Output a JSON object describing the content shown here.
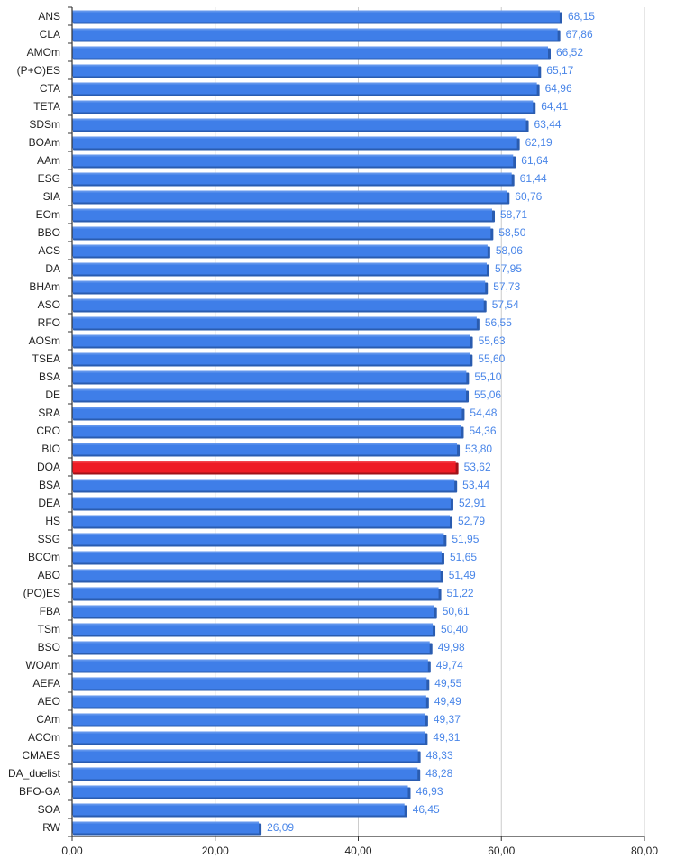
{
  "chart_data": {
    "type": "bar",
    "orientation": "horizontal",
    "categories": [
      "ANS",
      "CLA",
      "AMOm",
      "(P+O)ES",
      "CTA",
      "TETA",
      "SDSm",
      "BOAm",
      "AAm",
      "ESG",
      "SIA",
      "EOm",
      "BBO",
      "ACS",
      "DA",
      "BHAm",
      "ASO",
      "RFO",
      "AOSm",
      "TSEA",
      "BSA",
      "DE",
      "SRA",
      "CRO",
      "BIO",
      "DOA",
      "BSA",
      "DEA",
      "HS",
      "SSG",
      "BCOm",
      "ABO",
      "(PO)ES",
      "FBA",
      "TSm",
      "BSO",
      "WOAm",
      "AEFA",
      "AEO",
      "CAm",
      "ACOm",
      "CMAES",
      "DA_duelist",
      "BFO-GA",
      "SOA",
      "RW"
    ],
    "values": [
      68.15,
      67.86,
      66.52,
      65.17,
      64.96,
      64.41,
      63.44,
      62.19,
      61.64,
      61.44,
      60.76,
      58.71,
      58.5,
      58.06,
      57.95,
      57.73,
      57.54,
      56.55,
      55.63,
      55.6,
      55.1,
      55.06,
      54.48,
      54.36,
      53.8,
      53.62,
      53.44,
      52.91,
      52.79,
      51.95,
      51.65,
      51.49,
      51.22,
      50.61,
      50.4,
      49.98,
      49.74,
      49.55,
      49.49,
      49.37,
      49.31,
      48.33,
      48.28,
      46.93,
      46.45,
      26.09
    ],
    "value_labels": [
      "68,15",
      "67,86",
      "66,52",
      "65,17",
      "64,96",
      "64,41",
      "63,44",
      "62,19",
      "61,64",
      "61,44",
      "60,76",
      "58,71",
      "58,50",
      "58,06",
      "57,95",
      "57,73",
      "57,54",
      "56,55",
      "55,63",
      "55,60",
      "55,10",
      "55,06",
      "54,48",
      "54,36",
      "53,80",
      "53,62",
      "53,44",
      "52,91",
      "52,79",
      "51,95",
      "51,65",
      "51,49",
      "51,22",
      "50,61",
      "50,40",
      "49,98",
      "49,74",
      "49,55",
      "49,49",
      "49,37",
      "49,31",
      "48,33",
      "48,28",
      "46,93",
      "46,45",
      "26,09"
    ],
    "highlight_index": 25,
    "xlim": [
      0,
      80
    ],
    "xticks": [
      0,
      20,
      40,
      60,
      80
    ],
    "xtick_labels": [
      "0,00",
      "20,00",
      "40,00",
      "60,00",
      "80,00"
    ],
    "grid": true,
    "title": "",
    "xlabel": "",
    "ylabel": "",
    "colors": {
      "bar": "#3f7ee8",
      "bar_shadow": "#2a5cb0",
      "highlight": "#ee1c25",
      "highlight_shadow": "#a01218",
      "value_label": "#4a86e8",
      "grid": "#cccccc",
      "axis": "#333333",
      "text": "#222222"
    }
  }
}
